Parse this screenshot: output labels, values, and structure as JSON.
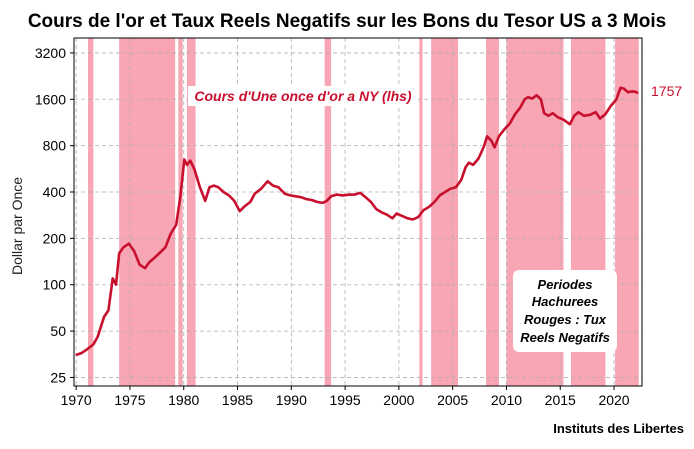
{
  "chart_data": {
    "type": "line",
    "title": "Cours de l'or et Taux Reels Negatifs sur les Bons du Tesor US a 3 Mois",
    "ylabel": "Dollar par Once",
    "xlabel": "",
    "y_scale": "log2",
    "ylim": [
      22,
      4000
    ],
    "xlim": [
      1969.8,
      2022.6
    ],
    "y_ticks": [
      "25",
      "50",
      "100",
      "200",
      "400",
      "800",
      "1600",
      "3200"
    ],
    "x_ticks": [
      "1970",
      "1975",
      "1980",
      "1985",
      "1990",
      "1995",
      "2000",
      "2005",
      "2010",
      "2015",
      "2020"
    ],
    "grid": true,
    "series": [
      {
        "name": "Cours d'Une once d'or a NY (lhs)",
        "color": "#c8102e",
        "x": [
          1970.0,
          1970.5,
          1971.0,
          1971.6,
          1972.0,
          1972.6,
          1973.0,
          1973.4,
          1973.7,
          1974.0,
          1974.4,
          1974.9,
          1975.4,
          1975.9,
          1976.4,
          1976.8,
          1977.3,
          1977.8,
          1978.3,
          1978.8,
          1979.3,
          1979.7,
          1980.05,
          1980.3,
          1980.6,
          1981.0,
          1981.5,
          1982.0,
          1982.4,
          1982.8,
          1983.2,
          1983.7,
          1984.2,
          1984.7,
          1985.2,
          1985.6,
          1986.2,
          1986.6,
          1987.2,
          1987.8,
          1988.3,
          1988.8,
          1989.4,
          1989.9,
          1990.4,
          1990.9,
          1991.4,
          1991.9,
          1992.4,
          1992.9,
          1993.3,
          1993.7,
          1994.2,
          1994.8,
          1995.4,
          1995.9,
          1996.4,
          1996.9,
          1997.4,
          1997.9,
          1998.4,
          1998.9,
          1999.4,
          1999.8,
          2000.3,
          2000.8,
          2001.3,
          2001.8,
          2002.3,
          2002.8,
          2003.3,
          2003.8,
          2004.3,
          2004.8,
          2005.3,
          2005.8,
          2006.2,
          2006.5,
          2006.9,
          2007.4,
          2007.9,
          2008.2,
          2008.6,
          2008.9,
          2009.3,
          2009.8,
          2010.3,
          2010.8,
          2011.3,
          2011.7,
          2012.0,
          2012.4,
          2012.8,
          2013.2,
          2013.5,
          2013.9,
          2014.3,
          2014.8,
          2015.3,
          2015.9,
          2016.3,
          2016.7,
          2017.2,
          2017.8,
          2018.3,
          2018.7,
          2019.2,
          2019.7,
          2020.2,
          2020.6,
          2020.9,
          2021.3,
          2021.7,
          2022.0,
          2022.2
        ],
        "y": [
          35,
          36,
          38,
          41,
          46,
          62,
          68,
          110,
          100,
          160,
          175,
          185,
          165,
          135,
          128,
          140,
          150,
          162,
          175,
          215,
          245,
          380,
          650,
          600,
          640,
          560,
          430,
          350,
          430,
          440,
          430,
          400,
          380,
          350,
          300,
          320,
          345,
          390,
          420,
          470,
          440,
          430,
          390,
          380,
          375,
          370,
          360,
          355,
          345,
          340,
          350,
          375,
          385,
          380,
          385,
          385,
          395,
          370,
          345,
          310,
          295,
          285,
          270,
          290,
          280,
          270,
          265,
          275,
          305,
          320,
          345,
          380,
          400,
          420,
          430,
          480,
          580,
          620,
          600,
          660,
          790,
          920,
          860,
          780,
          920,
          1020,
          1110,
          1280,
          1420,
          1600,
          1650,
          1620,
          1700,
          1600,
          1300,
          1250,
          1300,
          1220,
          1180,
          1100,
          1250,
          1320,
          1250,
          1270,
          1320,
          1200,
          1280,
          1450,
          1590,
          1900,
          1880,
          1780,
          1800,
          1790,
          1757
        ]
      }
    ],
    "negative_real_rate_periods": [
      [
        1971.1,
        1971.6
      ],
      [
        1974.0,
        1979.2
      ],
      [
        1979.5,
        1979.9
      ],
      [
        1980.3,
        1981.1
      ],
      [
        1993.1,
        1993.7
      ],
      [
        2001.9,
        2002.2
      ],
      [
        2003.0,
        2005.5
      ],
      [
        2008.1,
        2009.3
      ],
      [
        2010.0,
        2015.3
      ],
      [
        2016.0,
        2019.2
      ],
      [
        2020.1,
        2022.3
      ]
    ],
    "shading_color": "#f8a5b4",
    "annotations": {
      "series_label": "Cours d'Une once d'or a NY (lhs)",
      "end_value": "1757",
      "note_lines": [
        "Periodes",
        "Hachurees",
        "Rouges : Tux",
        "Reels Negatifs"
      ]
    },
    "source": "Instituts des Libertes"
  }
}
